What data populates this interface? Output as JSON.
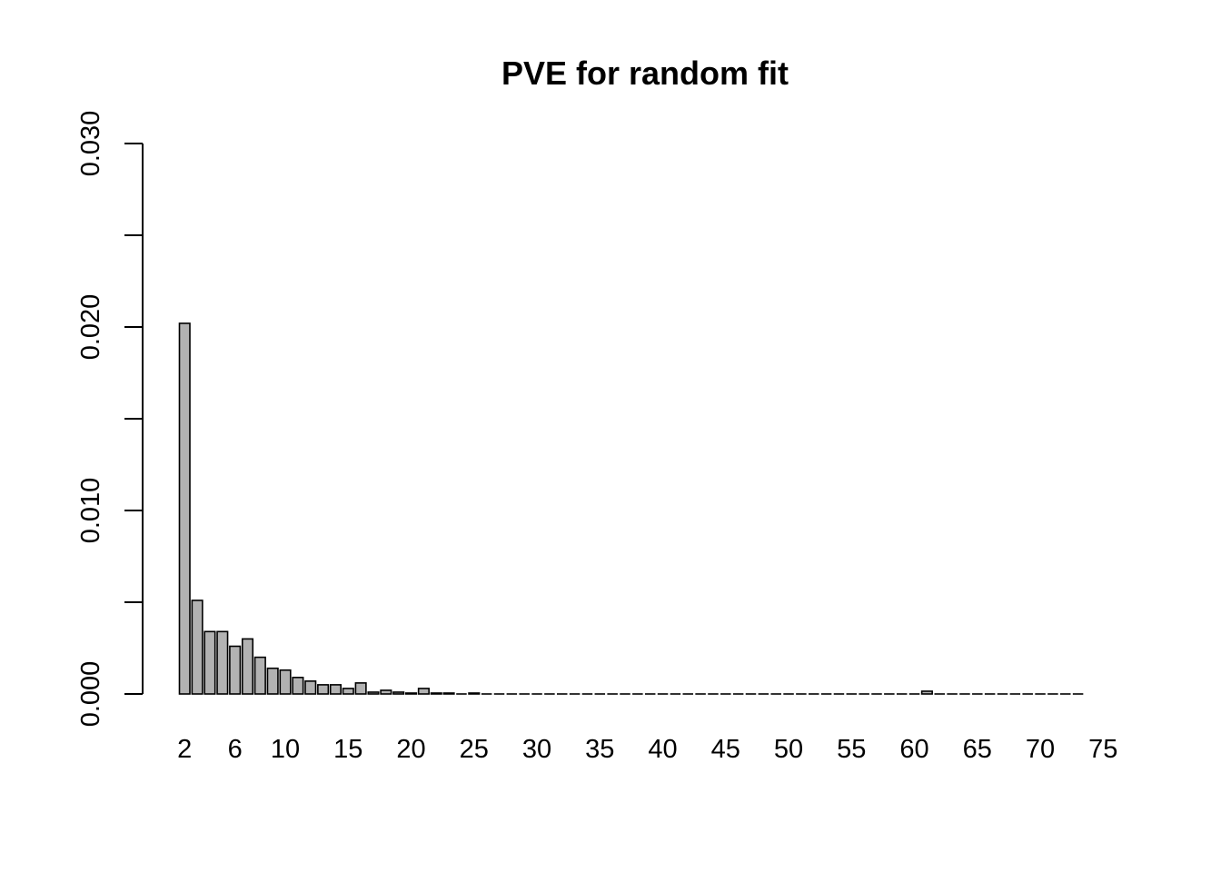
{
  "chart_data": {
    "type": "bar",
    "title": "PVE for random fit",
    "xlabel": "",
    "ylabel": "",
    "x_start": 2,
    "x_tick_labels": [
      "2",
      "6",
      "10",
      "15",
      "20",
      "25",
      "30",
      "35",
      "40",
      "45",
      "50",
      "55",
      "60",
      "65",
      "70",
      "75"
    ],
    "y_tick_labels": [
      "0.000",
      "0.010",
      "0.020",
      "0.030"
    ],
    "y_ticks": [
      0.0,
      0.005,
      0.01,
      0.015,
      0.02,
      0.025,
      0.03
    ],
    "ylim": [
      0,
      0.03
    ],
    "values": [
      0.0202,
      0.0051,
      0.0034,
      0.0034,
      0.0026,
      0.003,
      0.002,
      0.0014,
      0.0013,
      0.0009,
      0.0007,
      0.0005,
      0.0005,
      0.0003,
      0.0006,
      0.0001,
      0.0002,
      0.0001,
      5e-05,
      0.0003,
      5e-05,
      5e-05,
      0.0,
      5e-05,
      0.0,
      0.0,
      0.0,
      0.0,
      0.0,
      0.0,
      0.0,
      0.0,
      0.0,
      0.0,
      0.0,
      0.0,
      0.0,
      0.0,
      0.0,
      0.0,
      0.0,
      0.0,
      0.0,
      0.0,
      0.0,
      0.0,
      0.0,
      0.0,
      0.0,
      0.0,
      0.0,
      0.0,
      0.0,
      0.0,
      0.0,
      0.0,
      0.0,
      0.0,
      0.0,
      0.00015,
      0.0,
      0.0,
      0.0,
      0.0,
      0.0,
      0.0,
      0.0,
      0.0,
      0.0,
      0.0,
      0.0,
      0.0
    ],
    "bar_color": "#b2b2b2",
    "grid": false,
    "legend": "none"
  }
}
